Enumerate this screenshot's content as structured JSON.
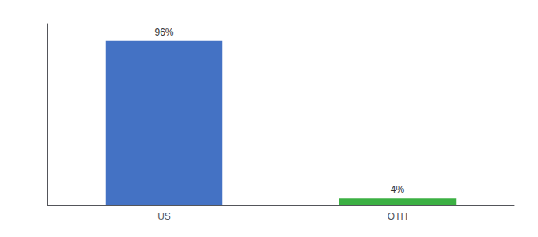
{
  "chart_data": {
    "type": "bar",
    "categories": [
      "US",
      "OTH"
    ],
    "values": [
      96,
      4
    ],
    "value_labels": [
      "96%",
      "4%"
    ],
    "colors": [
      "#4472c4",
      "#3cb043"
    ],
    "ylim": [
      0,
      106
    ],
    "grid": false,
    "data_labels": true,
    "tick_labels": "x"
  }
}
